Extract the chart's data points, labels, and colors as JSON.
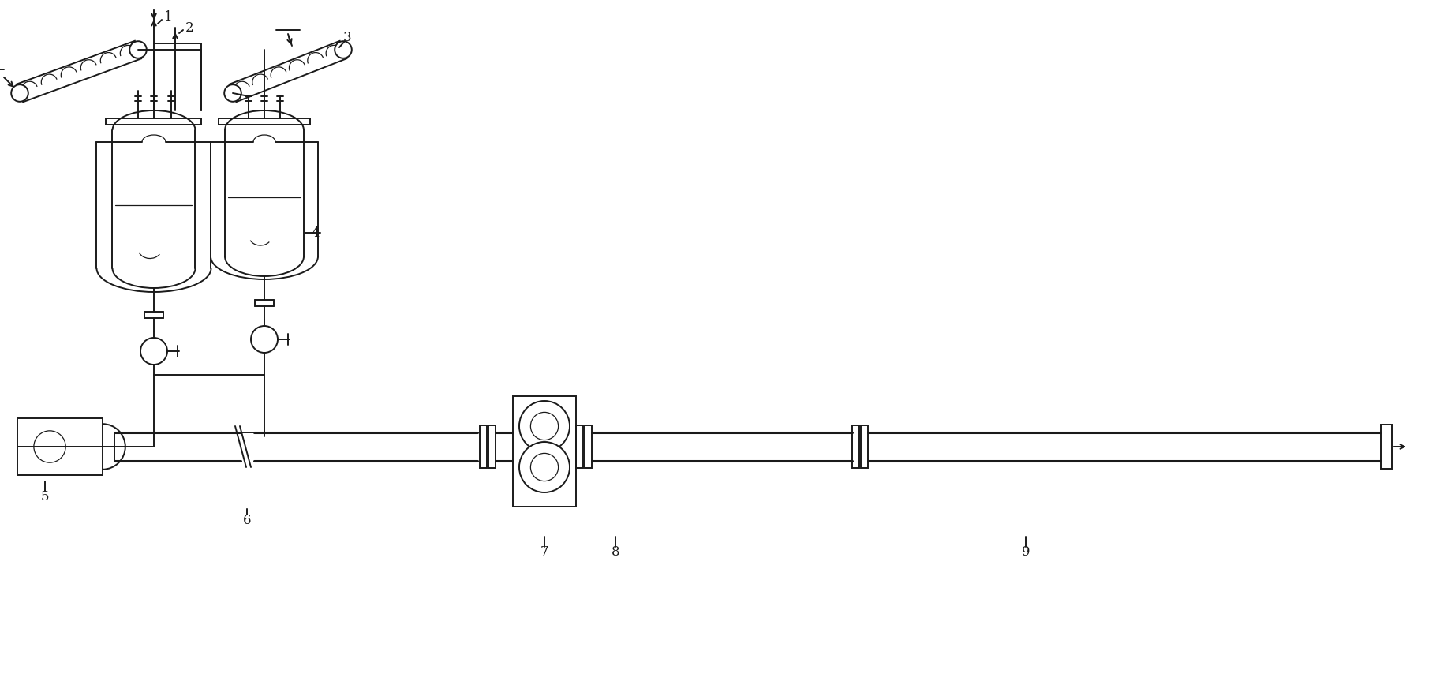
{
  "bg_color": "#ffffff",
  "line_color": "#1a1a1a",
  "lw": 1.4,
  "lw_thin": 0.9,
  "lw_thick": 2.2,
  "figsize": [
    18.25,
    8.68
  ],
  "dpi": 100
}
